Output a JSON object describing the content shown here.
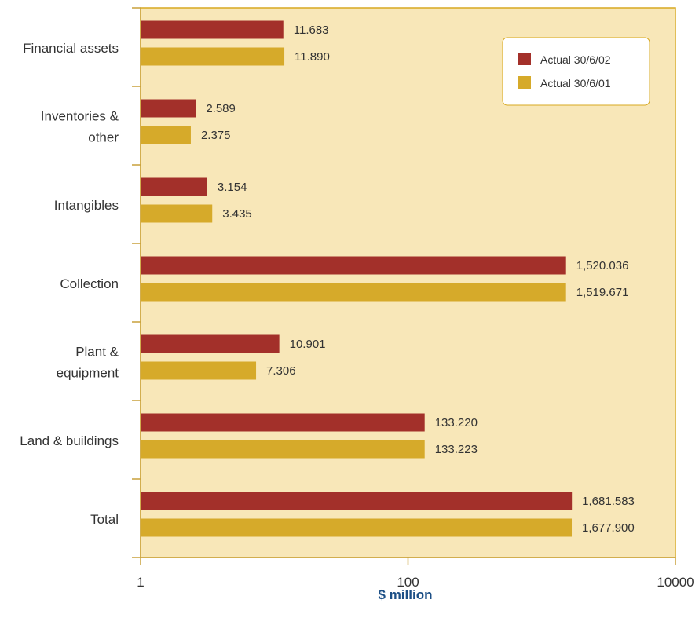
{
  "chart_data": {
    "type": "bar",
    "orientation": "horizontal",
    "x_scale": "log",
    "xlim": [
      1,
      10000
    ],
    "xticks": [
      "1",
      "100",
      "10000"
    ],
    "xlabel": "$ million",
    "categories": [
      [
        "Financial assets"
      ],
      [
        "Inventories &",
        "other"
      ],
      [
        "Intangibles"
      ],
      [
        "Collection"
      ],
      [
        "Plant &",
        "equipment"
      ],
      [
        "Land & buildings"
      ],
      [
        "Total"
      ]
    ],
    "series": [
      {
        "name": "Actual 30/6/02",
        "color": "#a3302a",
        "values": [
          11.683,
          2.589,
          3.154,
          1520.036,
          10.901,
          133.22,
          1681.583
        ],
        "labels": [
          "11.683",
          "2.589",
          "3.154",
          "1,520.036",
          "10.901",
          "133.220",
          "1,681.583"
        ]
      },
      {
        "name": "Actual 30/6/01",
        "color": "#d6aa2a",
        "values": [
          11.89,
          2.375,
          3.435,
          1519.671,
          7.306,
          133.223,
          1677.9
        ],
        "labels": [
          "11.890",
          "2.375",
          "3.435",
          "1,519.671",
          "7.306",
          "133.223",
          "1,677.900"
        ]
      }
    ],
    "legend_position": "top-right",
    "colors": {
      "plot_background": "#f8e7b8",
      "plot_border": "#d7a820",
      "axis_line": "#c9a13a",
      "axis_title": "#1c4f86"
    }
  }
}
